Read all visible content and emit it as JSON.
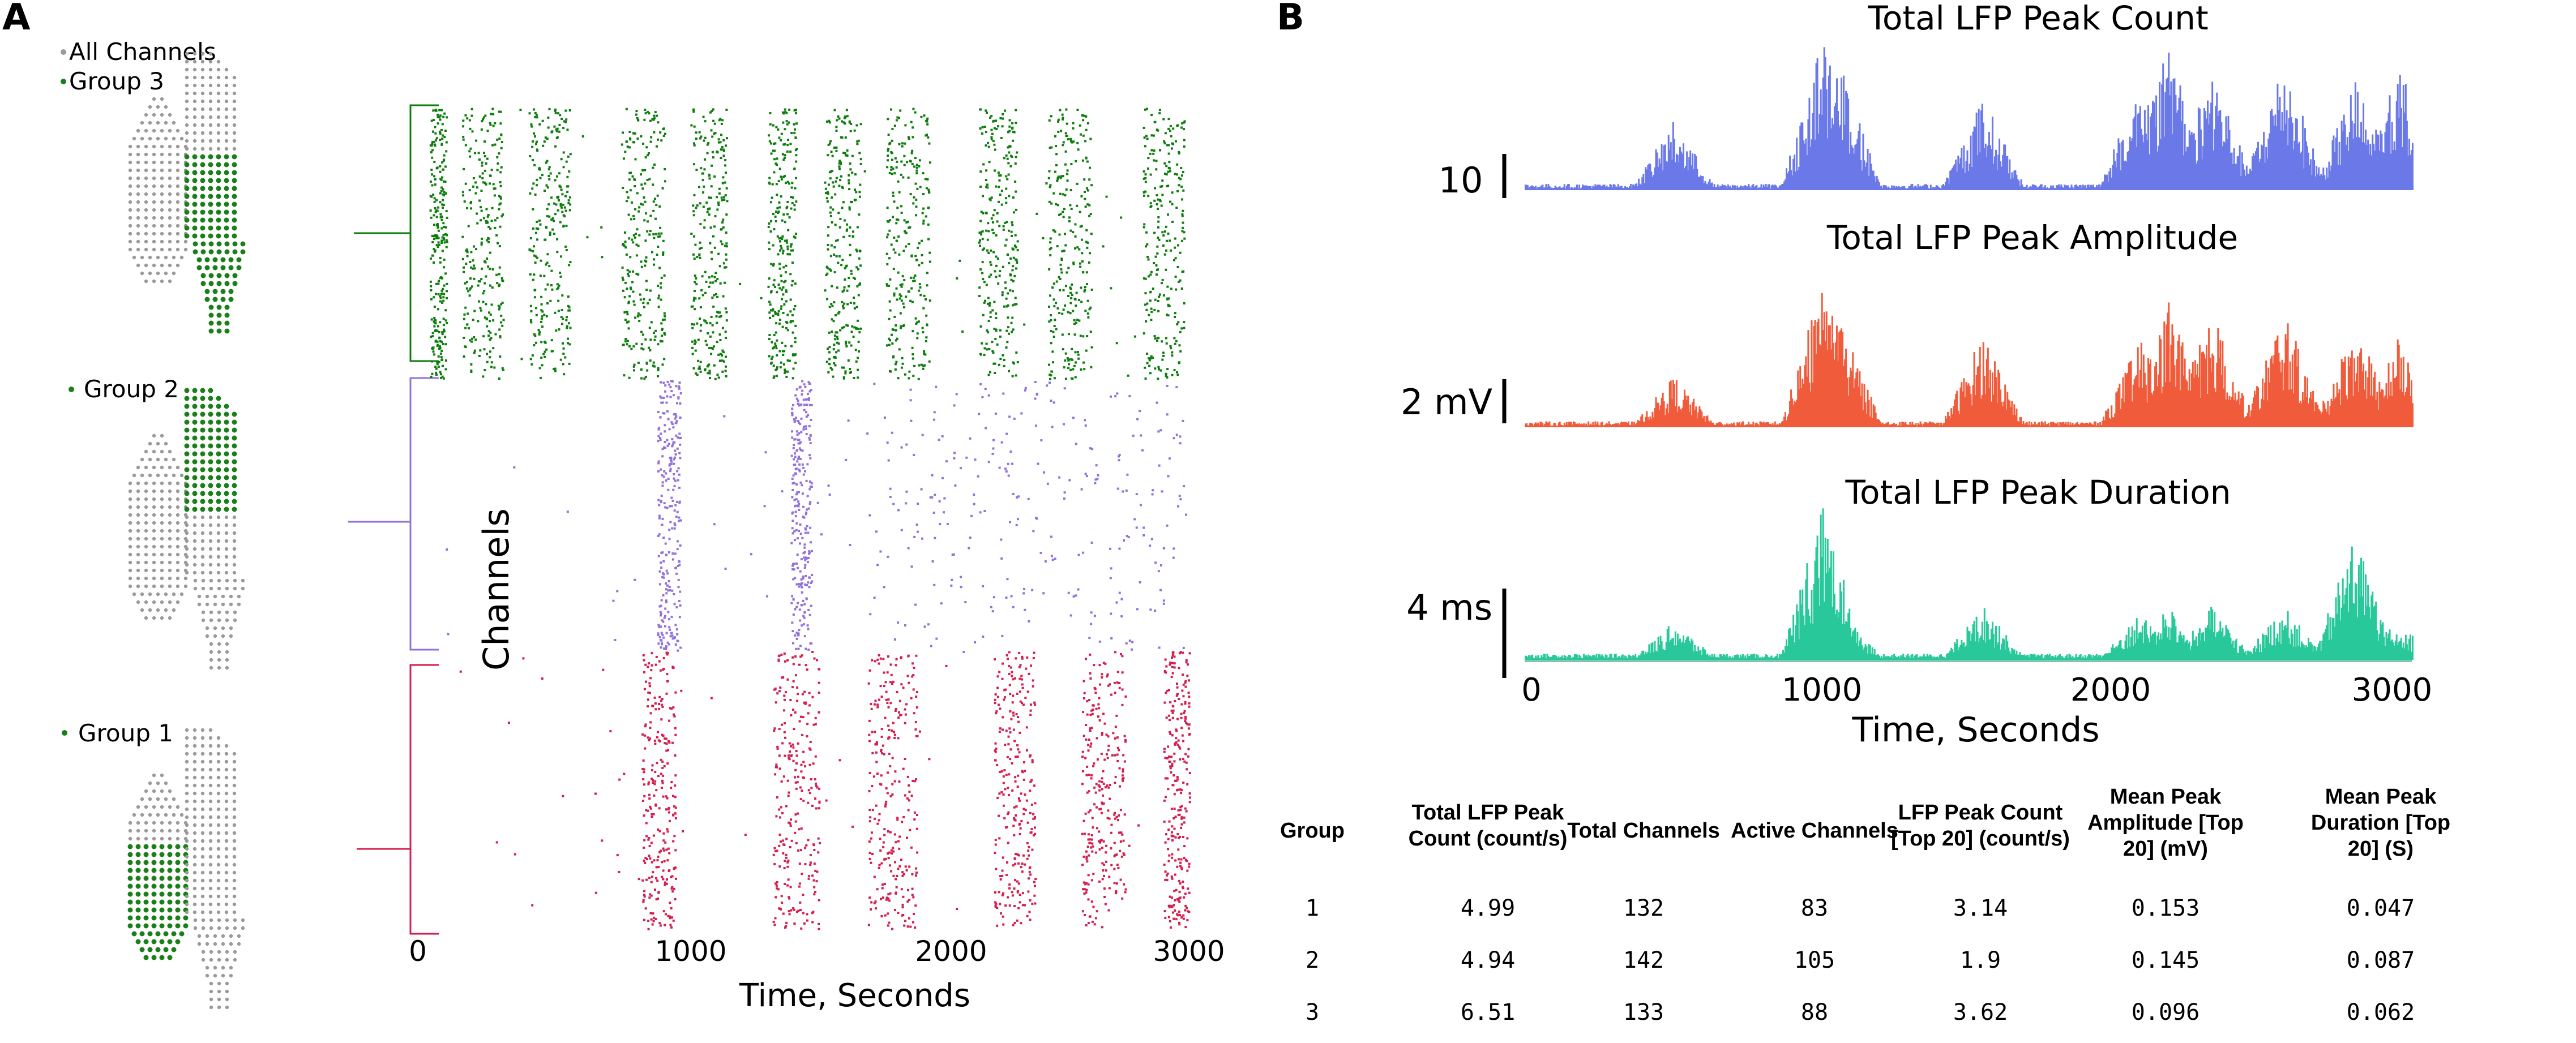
{
  "panel_a": {
    "label": "A",
    "legend": {
      "all": "All Channels",
      "group3": "Group 3",
      "group2": "Group 2",
      "group1": "Group 1"
    },
    "colors": {
      "grid": "#9a9a9a",
      "active": "#1a7f1a",
      "group3": "#0e7d0e",
      "group2": "#9272da",
      "group1": "#d41e4e"
    },
    "chart_data": {
      "type": "scatter",
      "title": "",
      "xlabel": "Time, Seconds",
      "ylabel": "Channels",
      "xlim": [
        0,
        3100
      ],
      "x_ticks": [
        "0",
        "1000",
        "2000",
        "3000"
      ],
      "series": [
        {
          "name": "Group 3",
          "bursts": [
            [
              45,
              110
            ],
            [
              170,
              330
            ],
            [
              430,
              590
            ],
            [
              790,
              960
            ],
            [
              1060,
              1200
            ],
            [
              1360,
              1470
            ],
            [
              1580,
              1720
            ],
            [
              1820,
              1990
            ],
            [
              2180,
              2330
            ],
            [
              2450,
              2620
            ],
            [
              2820,
              2980
            ]
          ]
        },
        {
          "name": "Group 2",
          "bursts": [
            [
              930,
              1020
            ],
            [
              1450,
              1530
            ],
            [
              1750,
              2990
            ]
          ]
        },
        {
          "name": "Group 1",
          "bursts": [
            [
              870,
              1000
            ],
            [
              1380,
              1560
            ],
            [
              1750,
              1940
            ],
            [
              2240,
              2400
            ],
            [
              2580,
              2750
            ],
            [
              2900,
              3000
            ]
          ]
        }
      ]
    }
  },
  "panel_b": {
    "label": "B",
    "charts": [
      {
        "name": "count",
        "title": "Total LFP Peak Count",
        "scale_label": "10",
        "color": "#6a78e8",
        "chart_data": {
          "type": "bar",
          "title": "Total LFP Peak Count",
          "xlim": [
            0,
            3100
          ],
          "scale_bar": 10,
          "unit": "count",
          "peaks": [
            [
              520,
              0.45
            ],
            [
              1040,
              1.0
            ],
            [
              1100,
              0.8
            ],
            [
              1600,
              0.6
            ],
            [
              2150,
              0.7
            ],
            [
              2250,
              0.95
            ],
            [
              2400,
              0.8
            ],
            [
              2650,
              0.85
            ],
            [
              2900,
              0.7
            ],
            [
              3050,
              0.85
            ]
          ]
        }
      },
      {
        "name": "amplitude",
        "title": "Total LFP Peak Amplitude",
        "scale_label": "2 mV",
        "color": "#f05c3b",
        "chart_data": {
          "type": "bar",
          "title": "Total LFP Peak Amplitude",
          "xlim": [
            0,
            3100
          ],
          "scale_bar": 2,
          "unit": "mV",
          "peaks": [
            [
              520,
              0.35
            ],
            [
              1040,
              1.0
            ],
            [
              1100,
              0.75
            ],
            [
              1600,
              0.65
            ],
            [
              2150,
              0.6
            ],
            [
              2250,
              0.85
            ],
            [
              2400,
              0.8
            ],
            [
              2650,
              0.8
            ],
            [
              2900,
              0.7
            ],
            [
              3050,
              0.6
            ]
          ]
        }
      },
      {
        "name": "duration",
        "title": "Total LFP Peak Duration",
        "scale_label": "4 ms",
        "color": "#28c89a",
        "chart_data": {
          "type": "bar",
          "title": "Total LFP Peak Duration",
          "xlim": [
            0,
            3100
          ],
          "scale_bar": 4,
          "unit": "ms",
          "peaks": [
            [
              520,
              0.25
            ],
            [
              1040,
              1.0
            ],
            [
              1100,
              0.35
            ],
            [
              1600,
              0.35
            ],
            [
              2150,
              0.3
            ],
            [
              2250,
              0.35
            ],
            [
              2400,
              0.35
            ],
            [
              2650,
              0.35
            ],
            [
              2900,
              0.85
            ],
            [
              3050,
              0.25
            ]
          ]
        }
      }
    ],
    "x_axis": {
      "label": "Time, Seconds",
      "ticks": [
        "0",
        "1000",
        "2000",
        "3000"
      ]
    },
    "table": {
      "headers": [
        [
          "Group"
        ],
        [
          "Total LFP Peak",
          "Count (count/s)"
        ],
        [
          "Total Channels"
        ],
        [
          "Active Channels"
        ],
        [
          "LFP Peak Count",
          "[Top 20] (count/s)"
        ],
        [
          "Mean Peak",
          "Amplitude [Top",
          "20] (mV)"
        ],
        [
          "Mean Peak",
          "Duration [Top",
          "20] (S)"
        ]
      ],
      "rows": [
        [
          "1",
          "4.99",
          "132",
          "83",
          "3.14",
          "0.153",
          "0.047"
        ],
        [
          "2",
          "4.94",
          "142",
          "105",
          "1.9",
          "0.145",
          "0.087"
        ],
        [
          "3",
          "6.51",
          "133",
          "88",
          "3.62",
          "0.096",
          "0.062"
        ]
      ]
    }
  }
}
